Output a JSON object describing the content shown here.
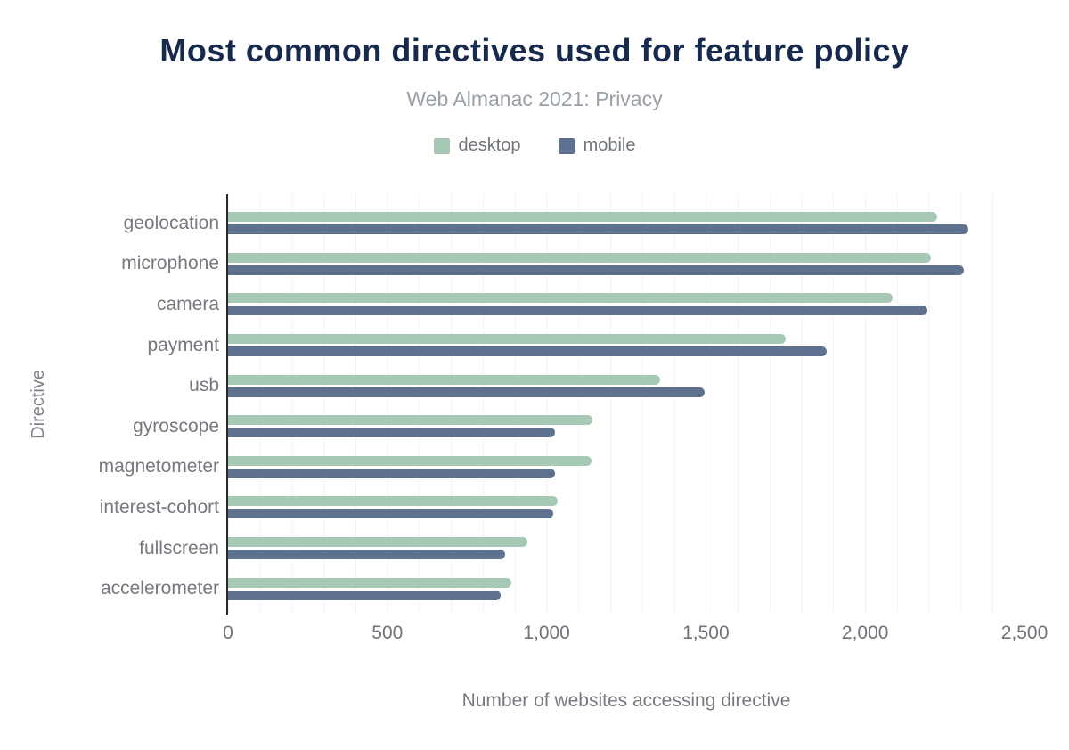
{
  "chart_data": {
    "type": "bar",
    "orientation": "horizontal",
    "title": "Most common directives used for feature policy",
    "subtitle": "Web Almanac 2021: Privacy",
    "xlabel": "Number of websites accessing directive",
    "ylabel": "Directive",
    "categories": [
      "geolocation",
      "microphone",
      "camera",
      "payment",
      "usb",
      "gyroscope",
      "magnetometer",
      "interest-cohort",
      "fullscreen",
      "accelerometer"
    ],
    "series": [
      {
        "name": "desktop",
        "color": "#a6c8b4",
        "values": [
          2225,
          2205,
          2085,
          1750,
          1355,
          1145,
          1140,
          1035,
          940,
          890
        ]
      },
      {
        "name": "mobile",
        "color": "#5e7290",
        "values": [
          2325,
          2310,
          2195,
          1880,
          1495,
          1025,
          1025,
          1020,
          870,
          855
        ]
      }
    ],
    "xlim": [
      0,
      2500
    ],
    "xticks": [
      0,
      500,
      1000,
      1500,
      2000,
      2500
    ],
    "xtick_labels": [
      "0",
      "500",
      "1,000",
      "1,500",
      "2,000",
      "2,500"
    ],
    "grid": {
      "vertical_every": 100,
      "color": "#f2f2f2"
    },
    "legend_position": "top"
  },
  "colors": {
    "title": "#17294d",
    "subtitle": "#9aa0a8",
    "axis_text": "#6f747b",
    "axis_line": "#26292e",
    "background": "#ffffff"
  }
}
